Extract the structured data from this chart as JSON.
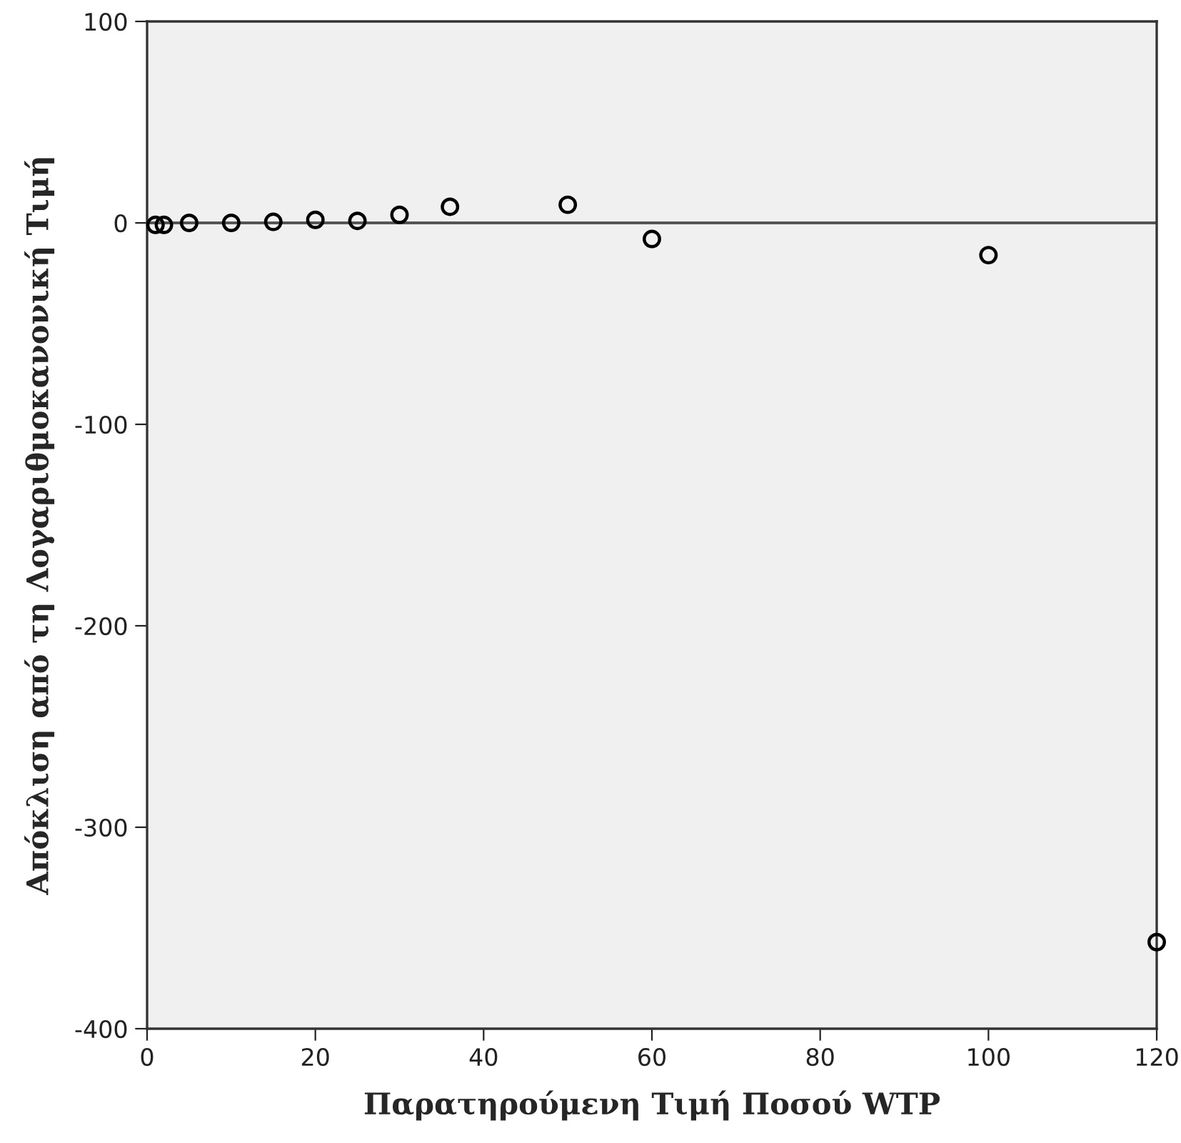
{
  "chart_data": {
    "type": "scatter",
    "xlabel": "Παρατηρούμενη Τιμή Ποσού WTP",
    "ylabel": "Απόκλιση από τη Λογαριθμοκανονική Τιμή",
    "x": [
      1,
      2,
      5,
      10,
      15,
      20,
      25,
      30,
      36,
      50,
      60,
      100,
      120
    ],
    "values": [
      -1,
      -1,
      0,
      0,
      0.5,
      1.5,
      1,
      4,
      8,
      9,
      -8,
      -16,
      -357
    ],
    "color": "#000000",
    "marker": "circle",
    "xlim": [
      0,
      120
    ],
    "ylim": [
      -400,
      100
    ],
    "xticks": [
      0,
      20,
      40,
      60,
      80,
      100,
      120
    ],
    "yticks": [
      -400,
      -300,
      -200,
      -100,
      0,
      100
    ],
    "ref_lines": [
      {
        "axis": "y",
        "value": 0,
        "color": "#555555"
      }
    ],
    "grid": false
  }
}
